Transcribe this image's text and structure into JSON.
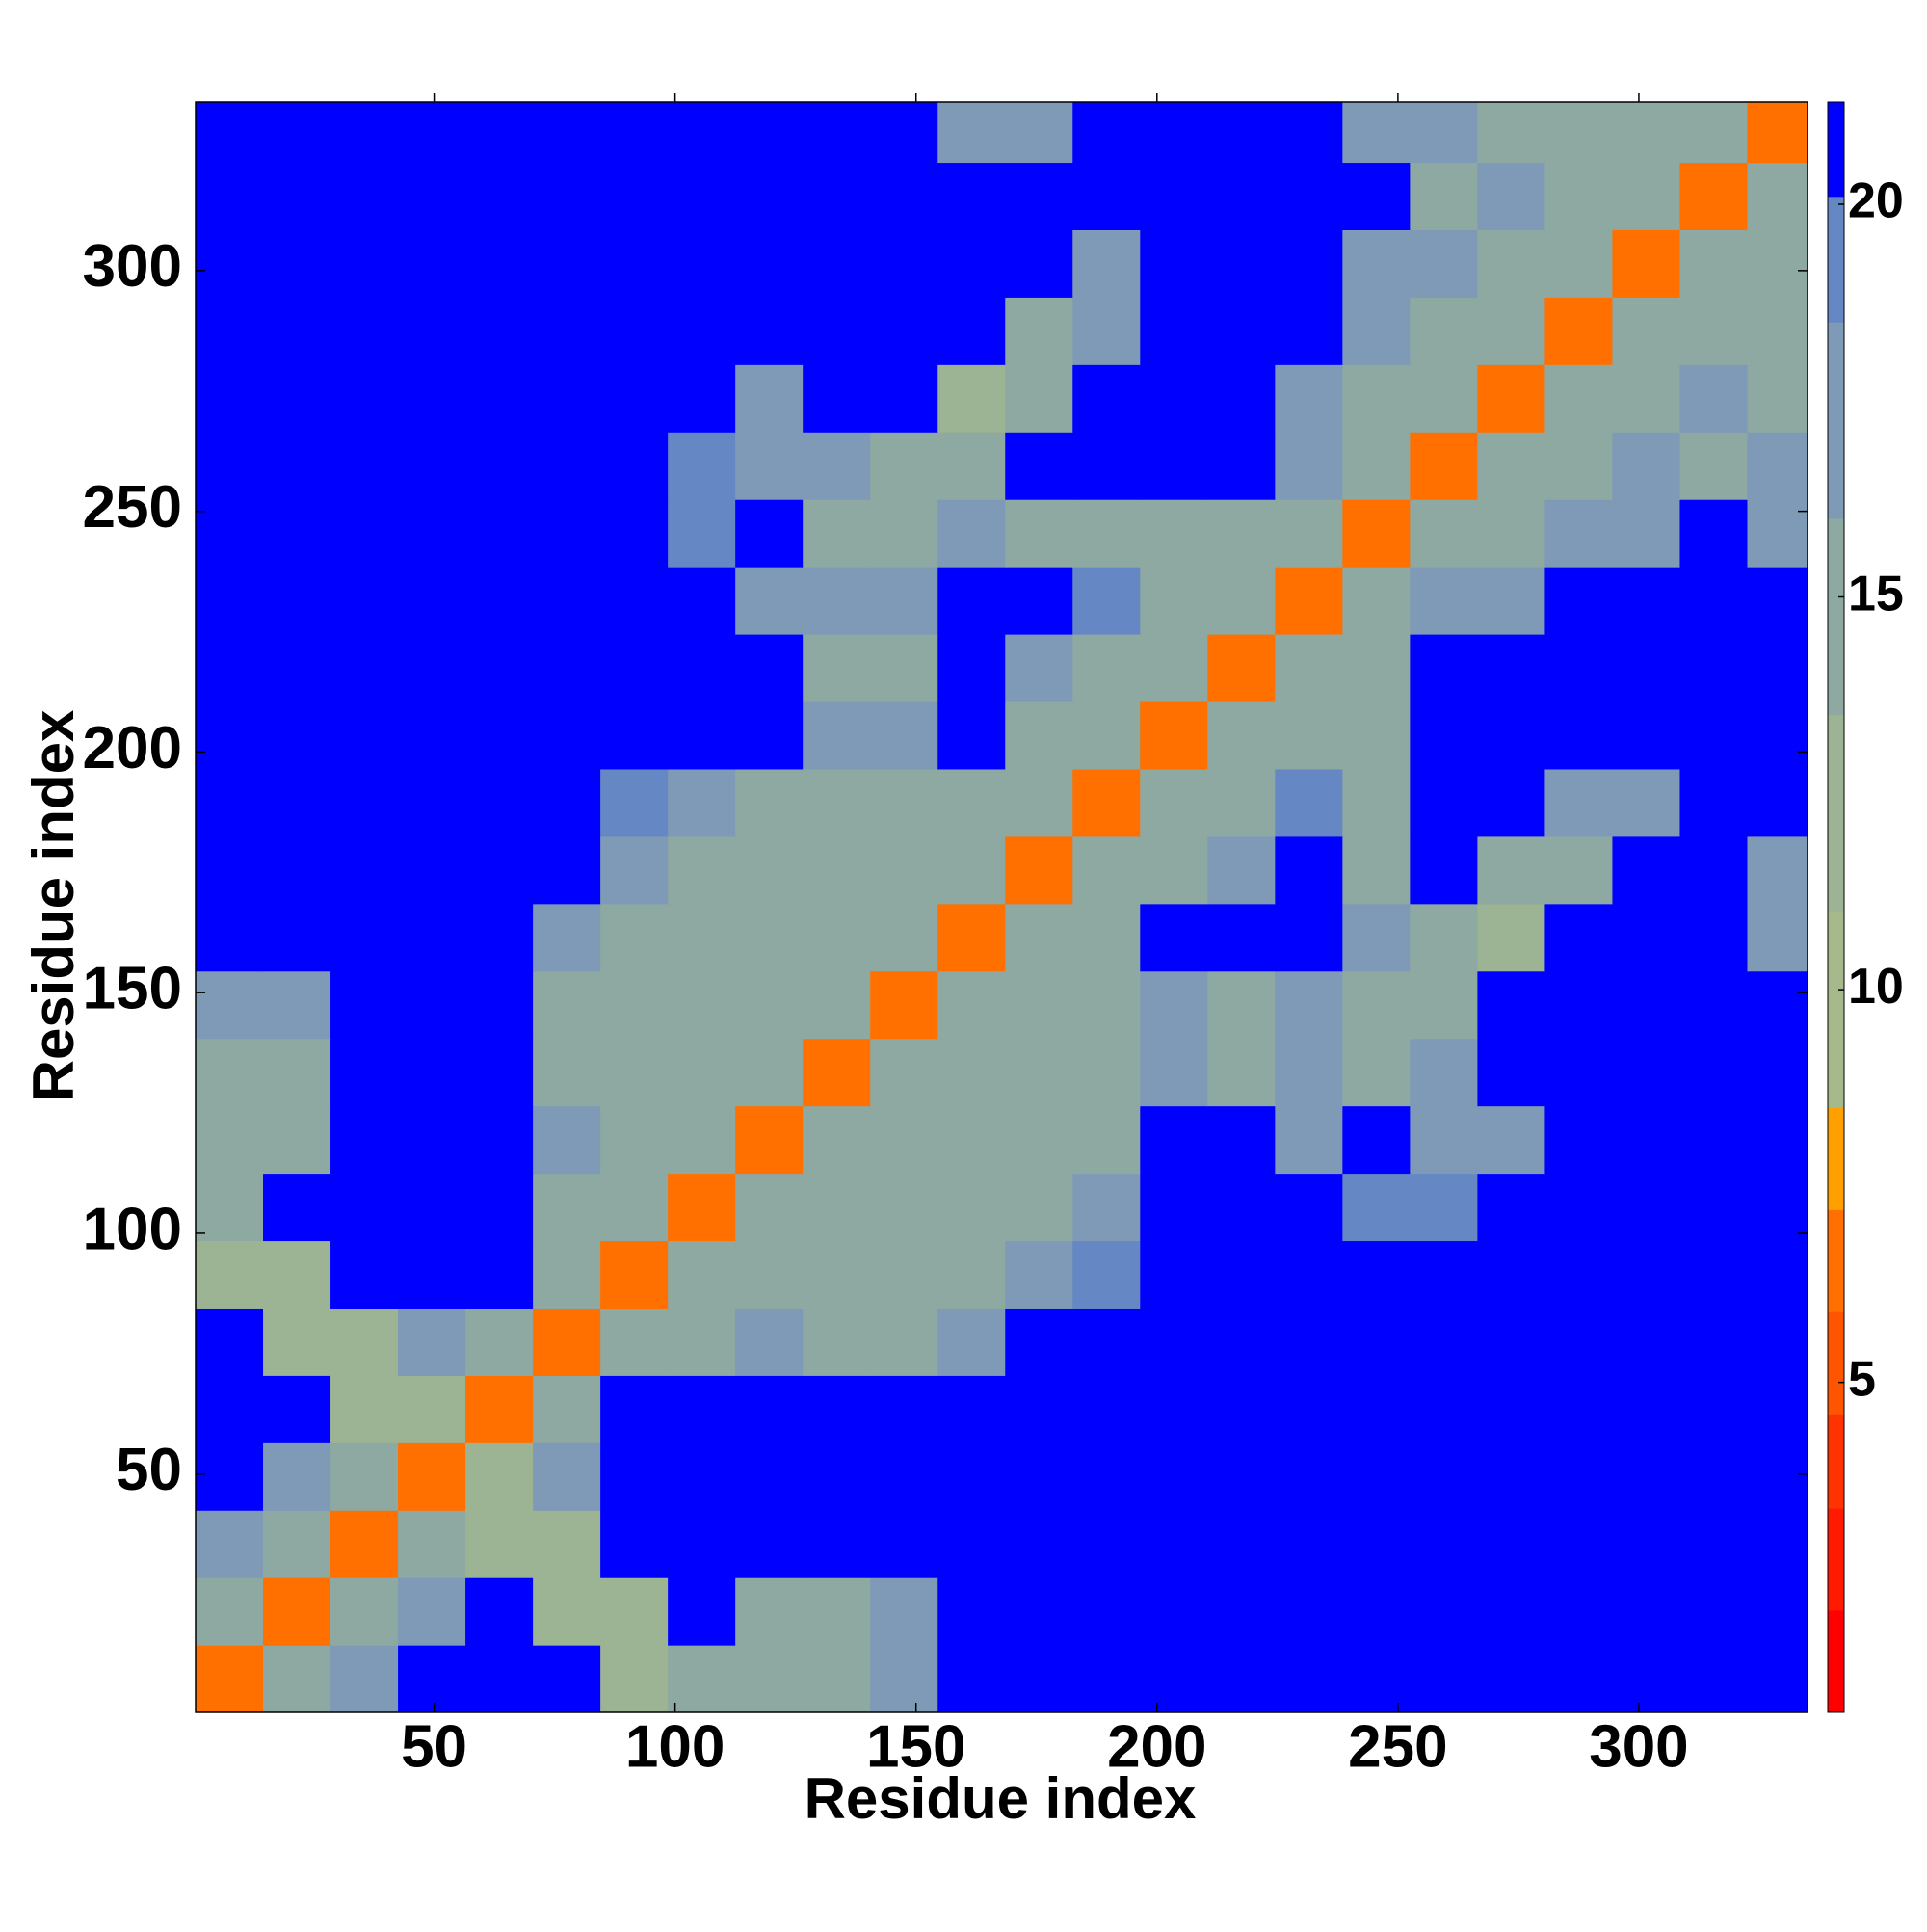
{
  "chart_data": {
    "type": "heatmap",
    "xlabel": "Residue index",
    "ylabel": "Residue index",
    "bins": [
      0.5,
      14.5,
      28.5,
      42.5,
      56.5,
      70.5,
      84.5,
      98.5,
      112.5,
      126.5,
      140.5,
      154.5,
      168.5,
      182.5,
      196.5,
      210.5,
      224.5,
      238.5,
      252.5,
      266.5,
      280.5,
      294.5,
      308.5,
      322.5,
      336.5
    ],
    "xlim": [
      0.5,
      335
    ],
    "ylim": [
      0.5,
      335
    ],
    "xticks": [
      50,
      100,
      150,
      200,
      250,
      300
    ],
    "yticks": [
      50,
      100,
      150,
      200,
      250,
      300
    ],
    "clim": [
      0.8,
      21.3
    ],
    "cbar_ticks": [
      5,
      10,
      15,
      20
    ],
    "colorscale": [
      {
        "value": 0.8,
        "color": "#ff0000"
      },
      {
        "value": 2.1,
        "color": "#ff1a00"
      },
      {
        "value": 3.4,
        "color": "#ff3300"
      },
      {
        "value": 4.6,
        "color": "#ff5500"
      },
      {
        "value": 5.9,
        "color": "#ff7000"
      },
      {
        "value": 7.2,
        "color": "#ffa000"
      },
      {
        "value": 8.5,
        "color": "#a6b98a"
      },
      {
        "value": 11.0,
        "color": "#9cb394"
      },
      {
        "value": 13.5,
        "color": "#8ea8a2"
      },
      {
        "value": 16.0,
        "color": "#7e9ab6"
      },
      {
        "value": 18.5,
        "color": "#6588c4"
      },
      {
        "value": 20.1,
        "color": "#0000ff"
      }
    ],
    "values": [
      [
        7,
        14,
        18,
        21,
        21,
        21,
        13,
        14,
        15,
        15,
        18,
        21,
        21,
        21,
        21,
        21,
        21,
        21,
        21,
        21,
        21,
        21,
        21,
        21
      ],
      [
        14,
        7,
        14,
        17,
        21,
        13,
        13,
        21,
        15,
        15,
        17,
        21,
        21,
        21,
        21,
        21,
        21,
        21,
        21,
        21,
        21,
        21,
        21,
        21
      ],
      [
        18,
        14,
        7,
        14,
        13,
        13,
        21,
        21,
        21,
        21,
        21,
        21,
        21,
        21,
        21,
        21,
        21,
        21,
        21,
        21,
        21,
        21,
        21,
        21
      ],
      [
        21,
        17,
        14,
        7,
        12,
        17,
        21,
        21,
        21,
        21,
        21,
        21,
        21,
        21,
        21,
        21,
        21,
        21,
        21,
        21,
        21,
        21,
        21,
        21
      ],
      [
        21,
        21,
        13,
        12,
        7,
        14,
        21,
        21,
        21,
        21,
        21,
        21,
        21,
        21,
        21,
        21,
        21,
        21,
        21,
        21,
        21,
        21,
        21,
        21
      ],
      [
        21,
        13,
        13,
        17,
        14,
        7,
        14,
        14,
        17,
        14,
        14,
        17,
        21,
        21,
        21,
        21,
        21,
        21,
        21,
        21,
        21,
        21,
        21,
        21
      ],
      [
        13,
        13,
        21,
        21,
        21,
        14,
        7,
        14,
        14,
        15,
        14,
        15,
        18,
        19,
        21,
        21,
        21,
        21,
        21,
        21,
        21,
        21,
        21,
        21
      ],
      [
        14,
        21,
        21,
        21,
        21,
        14,
        14,
        7,
        14,
        14,
        15,
        15,
        14,
        18,
        21,
        21,
        21,
        19,
        19,
        21,
        21,
        21,
        21,
        21
      ],
      [
        15,
        15,
        21,
        21,
        21,
        17,
        14,
        14,
        7,
        14,
        14,
        15,
        14,
        15,
        21,
        21,
        16,
        21,
        18,
        18,
        21,
        21,
        21,
        21
      ],
      [
        15,
        15,
        21,
        21,
        21,
        14,
        15,
        14,
        14,
        7,
        14,
        14,
        15,
        15,
        18,
        15,
        16,
        14,
        18,
        21,
        21,
        21,
        21,
        21
      ],
      [
        18,
        17,
        21,
        21,
        21,
        14,
        14,
        15,
        14,
        14,
        7,
        14,
        14,
        15,
        18,
        15,
        16,
        15,
        14,
        21,
        21,
        21,
        21,
        21
      ],
      [
        21,
        21,
        21,
        21,
        21,
        17,
        15,
        15,
        15,
        14,
        14,
        7,
        14,
        14,
        21,
        21,
        21,
        16,
        14,
        13,
        21,
        21,
        21,
        17
      ],
      [
        21,
        21,
        21,
        21,
        21,
        21,
        18,
        14,
        14,
        15,
        14,
        14,
        7,
        14,
        15,
        16,
        21,
        15,
        21,
        14,
        14,
        21,
        21,
        18
      ],
      [
        21,
        21,
        21,
        21,
        21,
        21,
        19,
        18,
        15,
        15,
        15,
        14,
        14,
        7,
        14,
        15,
        19,
        15,
        21,
        21,
        16,
        18,
        21,
        21
      ],
      [
        21,
        21,
        21,
        21,
        21,
        21,
        21,
        21,
        21,
        18,
        18,
        21,
        15,
        14,
        7,
        14,
        15,
        15,
        21,
        21,
        21,
        21,
        21,
        21
      ],
      [
        21,
        21,
        21,
        21,
        21,
        21,
        21,
        21,
        21,
        15,
        15,
        21,
        16,
        15,
        14,
        7,
        14,
        14,
        21,
        21,
        21,
        21,
        21,
        21
      ],
      [
        21,
        21,
        21,
        21,
        21,
        21,
        21,
        21,
        16,
        16,
        16,
        21,
        21,
        19,
        15,
        14,
        7,
        14,
        16,
        17,
        21,
        21,
        21,
        21
      ],
      [
        21,
        21,
        21,
        21,
        21,
        21,
        21,
        19,
        21,
        14,
        15,
        16,
        15,
        15,
        15,
        14,
        14,
        7,
        14,
        14,
        16,
        18,
        21,
        17
      ],
      [
        21,
        21,
        21,
        21,
        21,
        21,
        21,
        19,
        18,
        18,
        14,
        14,
        21,
        21,
        21,
        21,
        16,
        14,
        7,
        14,
        14,
        16,
        15,
        16
      ],
      [
        21,
        21,
        21,
        21,
        21,
        21,
        21,
        21,
        18,
        21,
        21,
        13,
        14,
        21,
        21,
        21,
        17,
        14,
        14,
        7,
        14,
        15,
        16,
        15
      ],
      [
        21,
        21,
        21,
        21,
        21,
        21,
        21,
        21,
        21,
        21,
        21,
        21,
        14,
        16,
        21,
        21,
        21,
        16,
        14,
        14,
        7,
        14,
        14,
        15
      ],
      [
        21,
        21,
        21,
        21,
        21,
        21,
        21,
        21,
        21,
        21,
        21,
        21,
        21,
        18,
        21,
        21,
        21,
        18,
        16,
        15,
        14,
        7,
        14,
        14
      ],
      [
        21,
        21,
        21,
        21,
        21,
        21,
        21,
        21,
        21,
        21,
        21,
        21,
        21,
        21,
        21,
        21,
        21,
        21,
        15,
        16,
        14,
        14,
        7,
        14
      ],
      [
        21,
        21,
        21,
        21,
        21,
        21,
        21,
        21,
        21,
        21,
        21,
        17,
        18,
        21,
        21,
        21,
        21,
        17,
        16,
        15,
        15,
        14,
        14,
        7
      ]
    ]
  }
}
